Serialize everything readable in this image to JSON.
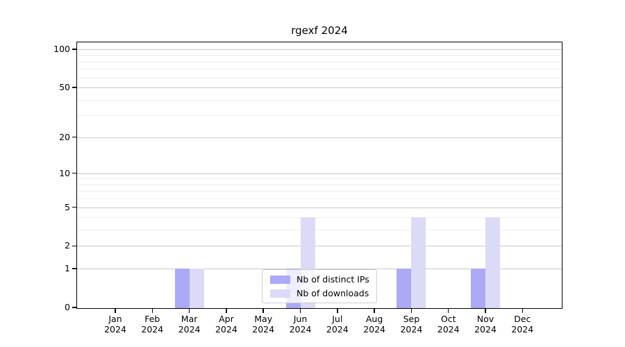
{
  "chart_data": {
    "type": "bar",
    "title": "rgexf 2024",
    "categories": [
      "Jan",
      "Feb",
      "Mar",
      "Apr",
      "May",
      "Jun",
      "Jul",
      "Aug",
      "Sep",
      "Oct",
      "Nov",
      "Dec"
    ],
    "x_year_label": "2024",
    "series": [
      {
        "name": "Nb of distinct IPs",
        "color": "#aaaaf7",
        "values": [
          0,
          0,
          1,
          0,
          0,
          1,
          0,
          0,
          1,
          0,
          1,
          0
        ]
      },
      {
        "name": "Nb of downloads",
        "color": "#dbdbf8",
        "values": [
          0,
          0,
          1,
          0,
          0,
          4,
          0,
          0,
          4,
          0,
          4,
          0
        ]
      }
    ],
    "y_ticks": [
      0,
      1,
      2,
      5,
      10,
      20,
      50,
      100
    ],
    "y_minor_gridlines": [
      3,
      4,
      6,
      7,
      8,
      9,
      30,
      40,
      60,
      70,
      80,
      90
    ],
    "y_scale": "log1p",
    "ylim": [
      0,
      100
    ],
    "xlabel": "",
    "ylabel": "",
    "grid": true,
    "legend_position": "lower center"
  },
  "colors": {
    "major_gridline": "#c9c9c9",
    "minor_gridline": "#efefef",
    "axis": "#000000",
    "legend_border": "#cccccc",
    "distinct_ips_bar": "#aaaaf7",
    "downloads_bar": "#dbdbf8"
  }
}
